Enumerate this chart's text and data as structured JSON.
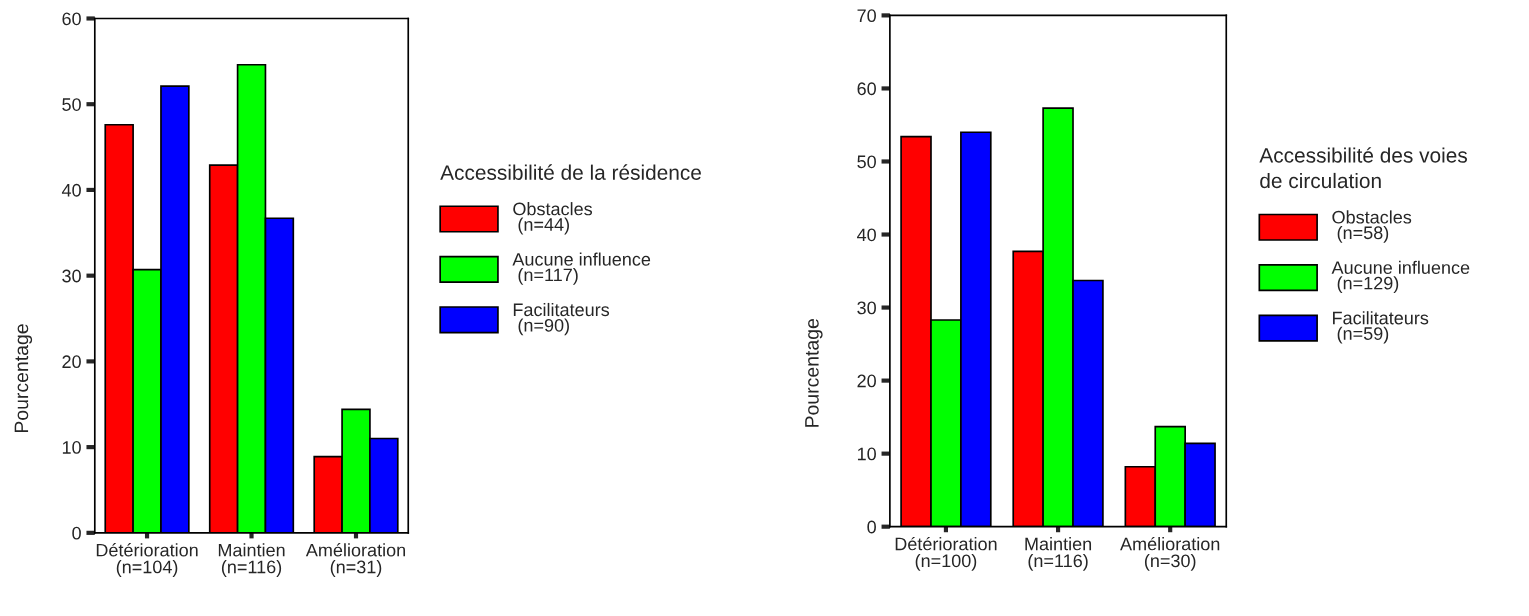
{
  "chart_data": [
    {
      "type": "bar",
      "categories": [
        "Détérioration\n(n=104)",
        "Maintien\n(n=116)",
        "Amélioration\n(n=31)"
      ],
      "ylabel": "Pourcentage",
      "ylim": [
        0,
        60
      ],
      "yticks": [
        0,
        10,
        20,
        30,
        40,
        50,
        60
      ],
      "legend": "right",
      "legend_title": "Accessibilité de la résidence",
      "grid": false,
      "series": [
        {
          "name": "Obstacles\n (n=44)",
          "color": "#ff0000",
          "values": [
            47.6,
            42.9,
            8.9
          ]
        },
        {
          "name": "Aucune influence\n (n=117)",
          "color": "#00ff00",
          "values": [
            30.7,
            54.6,
            14.4
          ]
        },
        {
          "name": "Facilitateurs\n (n=90)",
          "color": "#0000ff",
          "values": [
            52.1,
            36.7,
            11.0
          ]
        }
      ]
    },
    {
      "type": "bar",
      "categories": [
        "Détérioration\n(n=100)",
        "Maintien\n(n=116)",
        "Amélioration\n(n=30)"
      ],
      "ylabel": "Pourcentage",
      "ylim": [
        0,
        70
      ],
      "yticks": [
        0,
        10,
        20,
        30,
        40,
        50,
        60,
        70
      ],
      "legend": "right",
      "legend_title": "Accessibilité des voies\nde circulation",
      "grid": false,
      "series": [
        {
          "name": "Obstacles\n (n=58)",
          "color": "#ff0000",
          "values": [
            53.4,
            37.7,
            8.2
          ]
        },
        {
          "name": "Aucune influence\n (n=129)",
          "color": "#00ff00",
          "values": [
            28.3,
            57.3,
            13.7
          ]
        },
        {
          "name": "Facilitateurs\n (n=59)",
          "color": "#0000ff",
          "values": [
            54.0,
            33.7,
            11.4
          ]
        }
      ]
    }
  ]
}
